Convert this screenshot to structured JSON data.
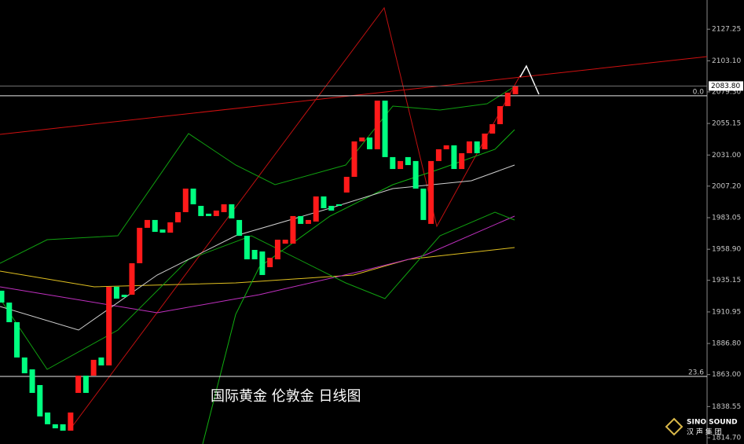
{
  "chart_data": {
    "type": "candlestick",
    "title": "国际黄金 伦敦金 日线图",
    "watermark": {
      "brand": "SINO SOUND",
      "subtitle": "汉 声 集 团"
    },
    "up_color": "#ff1a1a",
    "down_color": "#00ff80",
    "ylim": [
      1809.9,
      2149.6
    ],
    "yticks": [
      {
        "value": 2127.25,
        "label": "2127.25"
      },
      {
        "value": 2103.1,
        "label": "2103.10"
      },
      {
        "value": 2079.3,
        "label": "2079.30"
      },
      {
        "value": 2055.15,
        "label": "2055.15"
      },
      {
        "value": 2031.0,
        "label": "2031.00"
      },
      {
        "value": 2007.2,
        "label": "2007.20"
      },
      {
        "value": 1983.05,
        "label": "1983.05"
      },
      {
        "value": 1958.9,
        "label": "1958.90"
      },
      {
        "value": 1935.15,
        "label": "1935.15"
      },
      {
        "value": 1910.95,
        "label": "1910.95"
      },
      {
        "value": 1886.8,
        "label": "1886.80"
      },
      {
        "value": 1863.0,
        "label": "1863.00"
      },
      {
        "value": 1838.55,
        "label": "1838.55"
      },
      {
        "value": 1814.7,
        "label": "1814.70"
      }
    ],
    "current_price": {
      "value": 2083.8,
      "label": "2083.80"
    },
    "fib_levels": [
      {
        "level": "0.0",
        "price": 2076.3
      },
      {
        "level": "23.6",
        "price": 1861.6
      }
    ],
    "open": [
      1927.2,
      1918.1,
      1903.1,
      1876.1,
      1867.0,
      1855.0,
      1834.0,
      1825.0,
      1825.0,
      1820.1,
      1849.0,
      1862.2,
      1862.2,
      1876.1,
      1870.0,
      1930.2,
      1924.1,
      1924.1,
      1948.2,
      1975.3,
      1981.3,
      1974.0,
      1971.6,
      1979.5,
      1987.3,
      2005.3,
      1992.1,
      1986.1,
      1984.3,
      1987.3,
      1993.3,
      1981.3,
      1969.2,
      1958.4,
      1957.2,
      1945.2,
      1951.2,
      1963.2,
      1963.2,
      1984.3,
      1978.3,
      1980.1,
      1999.3,
      1992.1,
      1993.3,
      2002.3,
      2014.3,
      2041.4,
      2044.4,
      2035.4,
      2072.6,
      2029.4,
      2020.3,
      2029.4,
      2026.4,
      2005.3,
      1978.3,
      2026.4,
      2035.4,
      2038.4,
      2020.3,
      2032.4,
      2041.4,
      2035.4,
      2047.4,
      2054.6,
      2068.4,
      2077.5
    ],
    "close": [
      1918.1,
      1903.1,
      1876.1,
      1864.0,
      1849.0,
      1831.0,
      1825.0,
      1821.9,
      1820.1,
      1834.0,
      1862.2,
      1849.0,
      1874.3,
      1870.0,
      1930.2,
      1921.1,
      1922.3,
      1948.2,
      1975.3,
      1981.3,
      1972.2,
      1971.6,
      1979.5,
      1987.3,
      2005.3,
      1993.3,
      1984.3,
      1984.3,
      1988.5,
      1993.3,
      1982.5,
      1969.2,
      1951.2,
      1951.2,
      1939.2,
      1952.4,
      1966.2,
      1966.2,
      1984.3,
      1978.3,
      1981.3,
      1999.3,
      1990.3,
      1988.5,
      1992.1,
      2014.3,
      2041.4,
      2044.4,
      2035.4,
      2072.6,
      2029.4,
      2020.3,
      2026.4,
      2023.3,
      2005.3,
      1981.3,
      2026.4,
      2035.4,
      2038.4,
      2020.3,
      2032.4,
      2041.4,
      2032.4,
      2047.4,
      2054.6,
      2068.4,
      2078.7,
      2083.5
    ]
  }
}
